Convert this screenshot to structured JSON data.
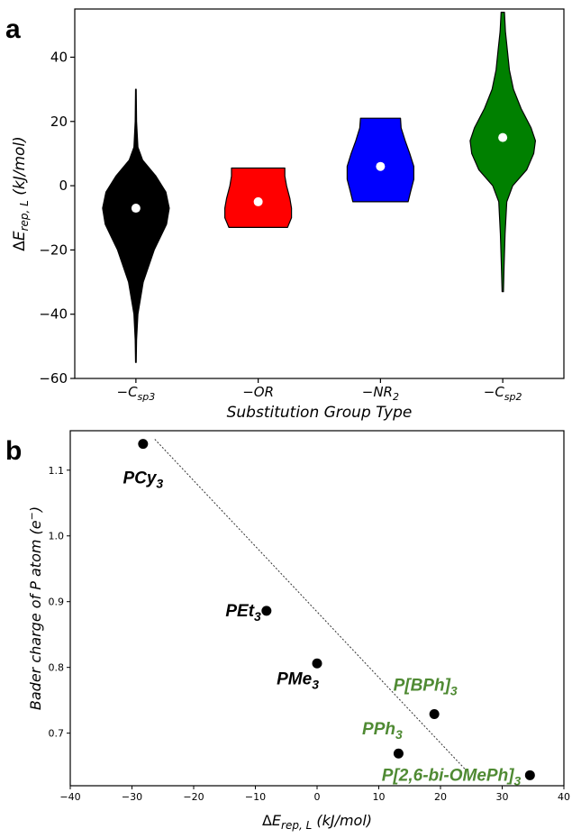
{
  "chart_data": [
    {
      "panel": "a",
      "type": "violin",
      "categories": [
        "−C",
        "−OR",
        "−NR",
        "−C"
      ],
      "category_subscripts": [
        "sp3",
        "",
        "2",
        "sp2"
      ],
      "xlabel": "Substitution Group Type",
      "ylabel_symbol": "ΔE",
      "ylabel_subscript": "rep, L",
      "ylabel_unit": " (kJ/mol)",
      "ylim": [
        -60,
        55
      ],
      "yticks": [
        -60,
        -40,
        -20,
        0,
        20,
        40
      ],
      "colors": [
        "#000000",
        "#ff0000",
        "#0000ff",
        "#008000"
      ],
      "violins": [
        {
          "center": -7,
          "profile": [
            [
              -55,
              0.01
            ],
            [
              -48,
              0.02
            ],
            [
              -40,
              0.06
            ],
            [
              -30,
              0.22
            ],
            [
              -20,
              0.55
            ],
            [
              -12,
              0.92
            ],
            [
              -7,
              1.0
            ],
            [
              -2,
              0.9
            ],
            [
              3,
              0.6
            ],
            [
              8,
              0.2
            ],
            [
              12,
              0.06
            ],
            [
              20,
              0.02
            ],
            [
              30,
              0.01
            ]
          ]
        },
        {
          "center": -5,
          "profile": [
            [
              -13,
              0.88
            ],
            [
              -10,
              1.0
            ],
            [
              -7,
              1.0
            ],
            [
              -4,
              0.95
            ],
            [
              0,
              0.85
            ],
            [
              3,
              0.8
            ],
            [
              5.5,
              0.8
            ]
          ]
        },
        {
          "center": 6,
          "profile": [
            [
              -5,
              0.83
            ],
            [
              -2,
              0.9
            ],
            [
              2,
              1.0
            ],
            [
              6,
              1.0
            ],
            [
              10,
              0.88
            ],
            [
              14,
              0.74
            ],
            [
              18,
              0.62
            ],
            [
              21,
              0.6
            ]
          ]
        },
        {
          "center": 15,
          "profile": [
            [
              -33,
              0.02
            ],
            [
              -25,
              0.04
            ],
            [
              -15,
              0.07
            ],
            [
              -5,
              0.12
            ],
            [
              0,
              0.3
            ],
            [
              5,
              0.72
            ],
            [
              10,
              0.93
            ],
            [
              14,
              0.98
            ],
            [
              18,
              0.85
            ],
            [
              24,
              0.55
            ],
            [
              30,
              0.32
            ],
            [
              36,
              0.2
            ],
            [
              42,
              0.14
            ],
            [
              48,
              0.08
            ],
            [
              54,
              0.05
            ]
          ]
        }
      ]
    },
    {
      "panel": "b",
      "type": "scatter",
      "xlabel_symbol": "ΔE",
      "xlabel_subscript": "rep, L",
      "xlabel_unit": " (kJ/mol)",
      "ylabel": "Bader charge of P atom (e",
      "ylabel_sup": "−",
      "ylabel_end": ")",
      "xlim": [
        -40,
        40
      ],
      "ylim": [
        0.62,
        1.16
      ],
      "xticks": [
        -40,
        -30,
        -20,
        -10,
        0,
        10,
        20,
        30,
        40
      ],
      "yticks": [
        0.7,
        0.8,
        0.9,
        1.0,
        1.1
      ],
      "points": [
        {
          "label": "PCy",
          "sub": "3",
          "x": -28.2,
          "y": 1.14,
          "color": "#000000"
        },
        {
          "label": "PEt",
          "sub": "3",
          "x": -8.2,
          "y": 0.886,
          "color": "#000000"
        },
        {
          "label": "PMe",
          "sub": "3",
          "x": 0.0,
          "y": 0.806,
          "color": "#000000"
        },
        {
          "label": "P[BPh]",
          "sub": "3",
          "x": 19.0,
          "y": 0.729,
          "color": "#4f8a33"
        },
        {
          "label": "PPh",
          "sub": "3",
          "x": 13.2,
          "y": 0.669,
          "color": "#4f8a33"
        },
        {
          "label": "P[2,6-bi-OMePh]",
          "sub": "3",
          "x": 34.5,
          "y": 0.636,
          "color": "#4f8a33"
        }
      ],
      "trendline": [
        [
          -26.3,
          1.147
        ],
        [
          24.0,
          0.645
        ]
      ]
    }
  ],
  "labels": {
    "panel_a": "a",
    "panel_b": "b"
  }
}
